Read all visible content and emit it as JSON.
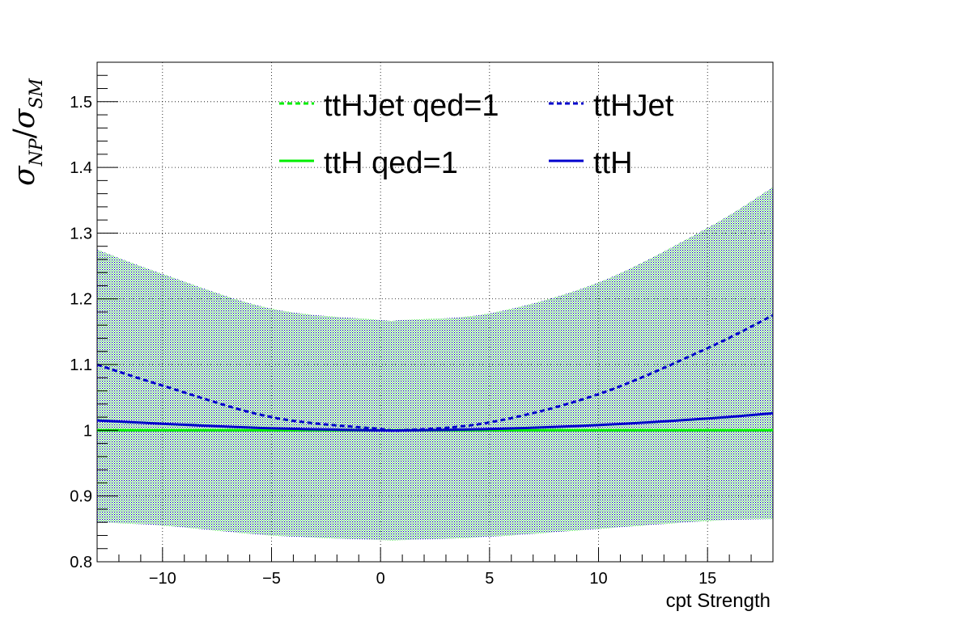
{
  "chart_data": {
    "type": "line",
    "xlabel": "cpt Strength",
    "ylabel": {
      "symbol": "σ",
      "num_sub": "NP",
      "slash": "/",
      "den_sub": "SM"
    },
    "xlim": [
      -13,
      18
    ],
    "ylim": [
      0.8,
      1.56
    ],
    "xticks": [
      -10,
      -5,
      0,
      5,
      10,
      15
    ],
    "xtick_labels": [
      "−10",
      "−5",
      "0",
      "5",
      "10",
      "15"
    ],
    "yticks": [
      0.8,
      0.9,
      1.0,
      1.1,
      1.2,
      1.3,
      1.4,
      1.5
    ],
    "ytick_labels": [
      "0.8",
      "0.9",
      "1",
      "1.1",
      "1.2",
      "1.3",
      "1.4",
      "1.5"
    ],
    "grid": true,
    "legend_position": "top",
    "x": [
      -13,
      -10,
      -5,
      0,
      1,
      5,
      10,
      15,
      18
    ],
    "series": [
      {
        "name": "ttHJet qed=1",
        "color": "#00ee00",
        "dash": true,
        "values": [
          1.0,
          1.0,
          1.0,
          1.0,
          1.0,
          1.0,
          1.0,
          1.0,
          1.0
        ]
      },
      {
        "name": "ttHJet",
        "color": "#0000cc",
        "dash": true,
        "values": [
          1.1,
          1.068,
          1.02,
          1.002,
          1.0,
          1.012,
          1.055,
          1.125,
          1.175
        ]
      },
      {
        "name": "ttH qed=1",
        "color": "#00ee00",
        "dash": false,
        "values": [
          1.0,
          1.0,
          1.0,
          1.0,
          1.0,
          1.0,
          1.0,
          1.0,
          1.0
        ]
      },
      {
        "name": "ttH",
        "color": "#0000cc",
        "dash": false,
        "values": [
          1.015,
          1.01,
          1.003,
          1.0,
          1.0,
          1.002,
          1.008,
          1.018,
          1.026
        ]
      }
    ],
    "bands": [
      {
        "series": "ttH qed=1",
        "color": "#00ee00",
        "upper": [
          1.275,
          1.238,
          1.185,
          1.168,
          1.168,
          1.178,
          1.225,
          1.308,
          1.37
        ],
        "lower": [
          0.86,
          0.855,
          0.84,
          0.833,
          0.833,
          0.838,
          0.85,
          0.862,
          0.865
        ]
      },
      {
        "series": "ttH",
        "color": "#0000aa",
        "upper": [
          1.275,
          1.238,
          1.185,
          1.168,
          1.168,
          1.178,
          1.225,
          1.308,
          1.37
        ],
        "lower": [
          0.86,
          0.855,
          0.84,
          0.833,
          0.833,
          0.838,
          0.85,
          0.862,
          0.865
        ]
      }
    ]
  }
}
